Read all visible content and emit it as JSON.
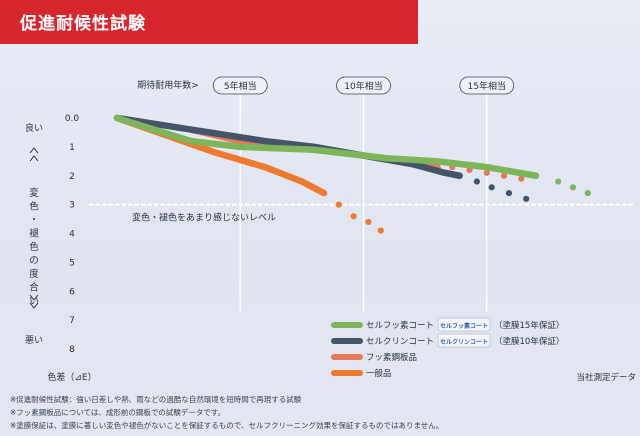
{
  "title": "促進耐候性試験",
  "chart_data": {
    "type": "line",
    "x_header": "期待耐用年数>",
    "milestones": [
      {
        "label": "5年相当",
        "year": 5
      },
      {
        "label": "10年相当",
        "year": 10
      },
      {
        "label": "15年相当",
        "year": 15
      }
    ],
    "xlim": [
      0,
      20
    ],
    "ylim": [
      0,
      8
    ],
    "yticks": [
      "0.0",
      "1",
      "2",
      "3",
      "4",
      "5",
      "6",
      "7",
      "8"
    ],
    "ylabel": "色差（⊿E）",
    "y_top_label": "良い",
    "y_middle_label": "変色・褪色の度合い",
    "y_bottom_label": "悪い",
    "threshold": {
      "value": 3,
      "label": "変色・褪色をあまり感じないレベル"
    },
    "source": "当社測定データ",
    "series": [
      {
        "name": "セルフッ素コート",
        "badge": "セルフッ素コート",
        "note": "（塗膜15年保証）",
        "color": "#7db55a",
        "solid": [
          [
            0,
            0
          ],
          [
            3,
            0.8
          ],
          [
            5,
            1.0
          ],
          [
            8,
            1.1
          ],
          [
            11,
            1.4
          ],
          [
            13,
            1.5
          ],
          [
            15,
            1.7
          ],
          [
            17,
            2.0
          ]
        ],
        "dots": [
          [
            17.9,
            2.2
          ],
          [
            18.5,
            2.4
          ],
          [
            19.1,
            2.6
          ]
        ]
      },
      {
        "name": "セルクリンコート",
        "badge": "セルクリンコート",
        "note": "（塗膜10年保証）",
        "color": "#44556a",
        "solid": [
          [
            0,
            0
          ],
          [
            3,
            0.4
          ],
          [
            6,
            0.8
          ],
          [
            8,
            1.0
          ],
          [
            10,
            1.3
          ],
          [
            12,
            1.6
          ],
          [
            13.3,
            1.9
          ],
          [
            13.9,
            2.0
          ]
        ],
        "dots": [
          [
            14.6,
            2.2
          ],
          [
            15.2,
            2.4
          ],
          [
            15.9,
            2.6
          ],
          [
            16.6,
            2.8
          ]
        ]
      },
      {
        "name": "フッ素鋼板品",
        "badge": "",
        "note": "",
        "color": "#e8785a",
        "solid": [
          [
            3,
            0.4
          ],
          [
            5,
            0.8
          ],
          [
            8,
            1.1
          ],
          [
            10,
            1.3
          ],
          [
            12,
            1.6
          ],
          [
            13,
            1.7
          ]
        ],
        "dots": [
          [
            13.6,
            1.7
          ],
          [
            14.3,
            1.8
          ],
          [
            15.0,
            1.9
          ],
          [
            15.7,
            2.0
          ],
          [
            16.4,
            2.1
          ]
        ]
      },
      {
        "name": "一般品",
        "badge": "",
        "note": "",
        "color": "#ee7a30",
        "solid": [
          [
            0,
            0
          ],
          [
            2,
            0.6
          ],
          [
            4,
            1.2
          ],
          [
            6,
            1.7
          ],
          [
            7.5,
            2.2
          ],
          [
            8.4,
            2.6
          ]
        ],
        "dots": [
          [
            9.0,
            3.0
          ],
          [
            9.6,
            3.4
          ],
          [
            10.2,
            3.6
          ],
          [
            10.7,
            3.9
          ]
        ]
      }
    ]
  },
  "footnotes": [
    "※促進耐候性試験：強い日差しや熱、雨などの過酷な自然環境を短時間で再現する試験",
    "※フッ素鋼板品については、成形前の鋼板での試験データです。",
    "※塗膜保証は、塗膜に著しい変色や褪色がないことを保証するもので、セルフクリーニング効果を保証するものではありません。"
  ]
}
